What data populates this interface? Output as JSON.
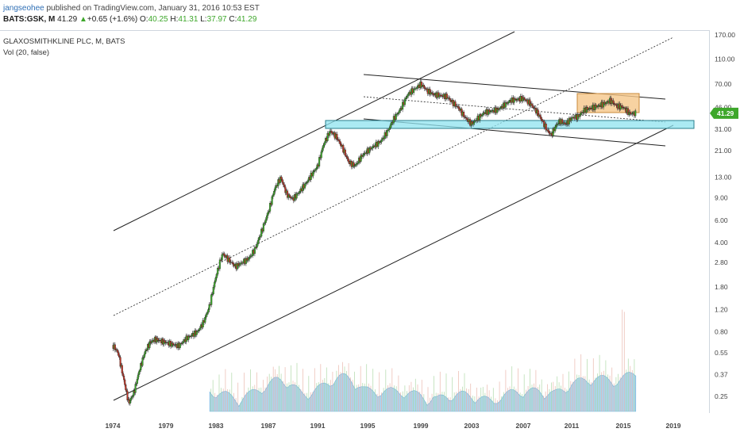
{
  "header": {
    "username": "jangseohee",
    "published_text": " published on TradingView.com, January 31, 2016 10:53 EST",
    "symbol_line": "BATS:GSK, M",
    "last_price": "41.29",
    "change_arrow": "▲",
    "change": "+0.65 (+1.6%)",
    "open_label": "O:",
    "open": "40.25",
    "high_label": "H:",
    "high": "41.31",
    "low_label": "L:",
    "low": "37.97",
    "close_label": "C:",
    "close": "41.29"
  },
  "legend": {
    "title": "GLAXOSMITHKLINE PLC, M, BATS",
    "volume_indicator": "Vol (20, false)"
  },
  "colors": {
    "up": "#3ea72b",
    "down": "#c0392b",
    "volume_fill": "#90c6e8",
    "support_zone": "#8fe3ef",
    "range_box": "#f5c78a",
    "price_badge": "#3ea72b"
  },
  "chart_data": {
    "type": "candlestick",
    "x_axis_labels": [
      "1974",
      "1979",
      "1983",
      "1987",
      "1991",
      "1995",
      "1999",
      "2003",
      "2007",
      "2011",
      "2015",
      "2019"
    ],
    "y_axis_labels": [
      "170.00",
      "110.00",
      "70.00",
      "46.00",
      "31.00",
      "21.00",
      "13.00",
      "9.00",
      "6.00",
      "4.00",
      "2.80",
      "1.80",
      "1.20",
      "0.80",
      "0.55",
      "0.37",
      "0.25"
    ],
    "y_scale": "log",
    "current_price_label": "41.29",
    "price_path": [
      [
        1974.0,
        0.63
      ],
      [
        1974.5,
        0.55
      ],
      [
        1975.0,
        0.35
      ],
      [
        1975.5,
        0.22
      ],
      [
        1976.0,
        0.27
      ],
      [
        1976.5,
        0.4
      ],
      [
        1977.0,
        0.55
      ],
      [
        1977.5,
        0.66
      ],
      [
        1978.0,
        0.7
      ],
      [
        1979.0,
        0.66
      ],
      [
        1980.0,
        0.62
      ],
      [
        1980.7,
        0.72
      ],
      [
        1981.5,
        0.8
      ],
      [
        1982.0,
        0.95
      ],
      [
        1982.5,
        1.3
      ],
      [
        1983.0,
        2.2
      ],
      [
        1983.5,
        3.3
      ],
      [
        1984.0,
        2.9
      ],
      [
        1984.5,
        2.6
      ],
      [
        1985.0,
        2.8
      ],
      [
        1985.5,
        3.0
      ],
      [
        1986.0,
        3.6
      ],
      [
        1986.5,
        5.0
      ],
      [
        1987.0,
        7.0
      ],
      [
        1987.5,
        10.5
      ],
      [
        1988.0,
        13.0
      ],
      [
        1988.5,
        9.5
      ],
      [
        1989.0,
        8.8
      ],
      [
        1989.5,
        10.0
      ],
      [
        1990.0,
        11.5
      ],
      [
        1991.0,
        16.0
      ],
      [
        1991.5,
        24.0
      ],
      [
        1992.0,
        30.0
      ],
      [
        1992.5,
        27.0
      ],
      [
        1993.0,
        22.0
      ],
      [
        1993.5,
        17.0
      ],
      [
        1994.0,
        16.0
      ],
      [
        1994.5,
        19.0
      ],
      [
        1995.0,
        21.0
      ],
      [
        1995.5,
        23.0
      ],
      [
        1996.0,
        25.0
      ],
      [
        1996.5,
        30.0
      ],
      [
        1997.0,
        38.0
      ],
      [
        1997.5,
        45.0
      ],
      [
        1998.0,
        58.0
      ],
      [
        1999.0,
        70.0
      ],
      [
        1999.5,
        62.0
      ],
      [
        2000.0,
        58.0
      ],
      [
        2001.0,
        56.0
      ],
      [
        2002.0,
        45.0
      ],
      [
        2002.5,
        38.0
      ],
      [
        2003.0,
        34.0
      ],
      [
        2003.5,
        38.0
      ],
      [
        2004.0,
        42.0
      ],
      [
        2005.0,
        44.0
      ],
      [
        2006.0,
        52.0
      ],
      [
        2007.0,
        54.0
      ],
      [
        2007.5,
        50.0
      ],
      [
        2008.0,
        44.0
      ],
      [
        2008.5,
        37.0
      ],
      [
        2009.0,
        30.0
      ],
      [
        2009.3,
        28.0
      ],
      [
        2009.7,
        33.0
      ],
      [
        2010.0,
        36.0
      ],
      [
        2010.5,
        34.0
      ],
      [
        2011.0,
        38.0
      ],
      [
        2011.5,
        39.0
      ],
      [
        2012.0,
        44.0
      ],
      [
        2013.0,
        47.0
      ],
      [
        2013.5,
        49.0
      ],
      [
        2014.0,
        52.0
      ],
      [
        2014.5,
        47.0
      ],
      [
        2015.0,
        46.0
      ],
      [
        2015.5,
        41.0
      ],
      [
        2016.0,
        41.29
      ]
    ],
    "volume_indicator": "Vol (20, false)"
  }
}
